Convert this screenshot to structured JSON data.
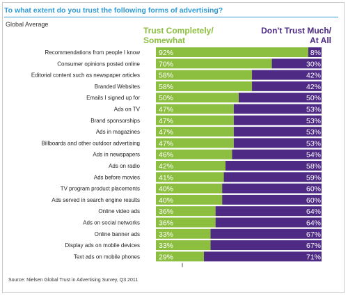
{
  "header": {
    "title": "To what extent do you trust the following forms of advertising?",
    "subtitle": "Global Average",
    "source": "Source: Nielsen Global Trust in Advertising Survey, Q3 2011"
  },
  "legend": {
    "trust_line1": "Trust Completely/",
    "trust_line2": "Somewhat",
    "distrust_line1": "Don't Trust Much/",
    "distrust_line2": "At All"
  },
  "colors": {
    "trust": "#8cbf3f",
    "distrust": "#4e2a84",
    "title": "#2f9ad3"
  },
  "chart_data": {
    "type": "bar",
    "orientation": "horizontal",
    "stacked": true,
    "categories": [
      "Recommendations from people I know",
      "Consumer opinions posted online",
      "Editorial content such as newspaper articles",
      "Branded Websites",
      "Emails I signed up for",
      "Ads on TV",
      "Brand sponsorships",
      "Ads in magazines",
      "Billboards and other outdoor advertising",
      "Ads in newspapers",
      "Ads on radio",
      "Ads before movies",
      "TV program product placements",
      "Ads served in search engine results",
      "Online video ads",
      "Ads on social networks",
      "Online banner ads",
      "Display ads on mobile devices",
      "Text ads on mobile phones"
    ],
    "series": [
      {
        "name": "Trust Completely/ Somewhat",
        "color": "#8cbf3f",
        "values": [
          92,
          70,
          58,
          58,
          50,
          47,
          47,
          47,
          47,
          46,
          42,
          41,
          40,
          40,
          36,
          36,
          33,
          33,
          29
        ]
      },
      {
        "name": "Don't Trust Much/ At All",
        "color": "#4e2a84",
        "values": [
          8,
          30,
          42,
          42,
          50,
          53,
          53,
          53,
          53,
          54,
          58,
          59,
          60,
          60,
          64,
          64,
          67,
          67,
          71
        ]
      }
    ],
    "value_suffix": "%",
    "xlim": [
      0,
      100
    ],
    "legend_position": "top"
  }
}
